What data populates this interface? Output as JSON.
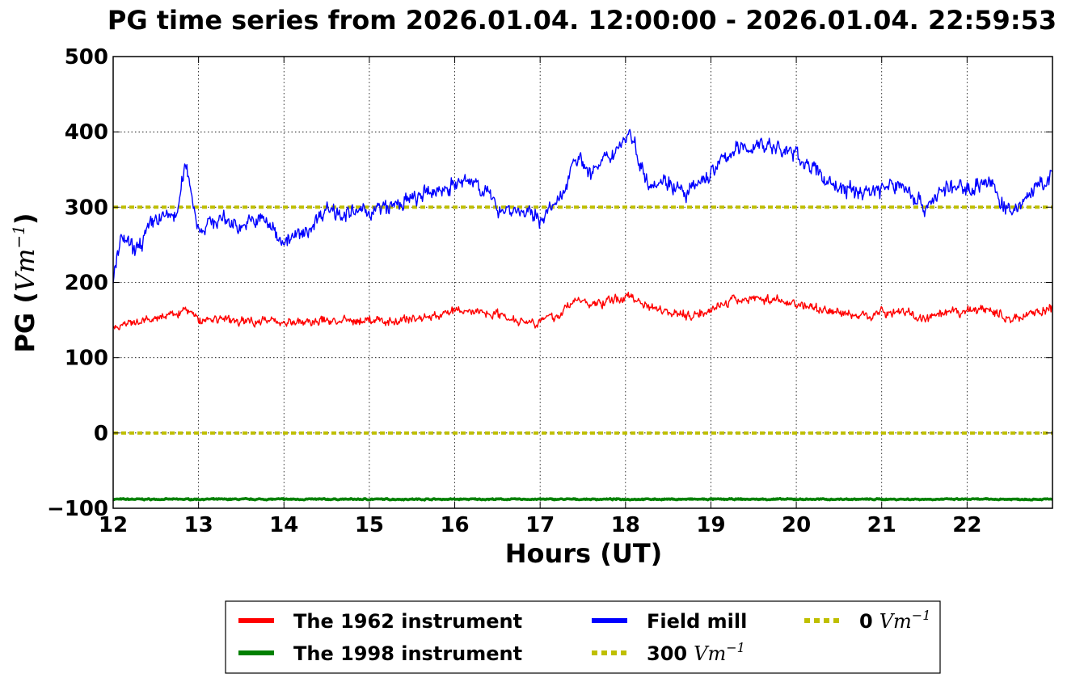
{
  "chart_data": {
    "type": "line",
    "title": "PG time series from 2026.01.04. 12:00:00 - 2026.01.04. 22:59:53",
    "xlabel": "Hours (UT)",
    "ylabel_prefix": "PG (",
    "ylabel_unit": "Vm",
    "ylabel_exp": "−1",
    "ylabel_suffix": ")",
    "xlim": [
      12,
      23
    ],
    "ylim": [
      -100,
      500
    ],
    "xticks": [
      12,
      13,
      14,
      15,
      16,
      17,
      18,
      19,
      20,
      21,
      22
    ],
    "xtick_labels": [
      "12",
      "13",
      "14",
      "15",
      "16",
      "17",
      "18",
      "19",
      "20",
      "21",
      "22"
    ],
    "yticks": [
      -100,
      0,
      100,
      200,
      300,
      400,
      500
    ],
    "ytick_labels": [
      "−100",
      "0",
      "100",
      "200",
      "300",
      "400",
      "500"
    ],
    "grid": true,
    "legend_position": "bottom-center",
    "series": [
      {
        "name": "The 1962 instrument",
        "color": "#ff0000",
        "style": "solid",
        "x": [
          12.0,
          12.25,
          12.5,
          12.75,
          12.85,
          13.0,
          13.25,
          13.5,
          13.75,
          14.0,
          14.25,
          14.5,
          14.75,
          15.0,
          15.25,
          15.5,
          15.75,
          16.0,
          16.25,
          16.5,
          16.75,
          17.0,
          17.25,
          17.4,
          17.6,
          17.8,
          18.05,
          18.25,
          18.5,
          18.75,
          19.0,
          19.25,
          19.5,
          19.6,
          19.75,
          20.0,
          20.25,
          20.5,
          20.75,
          21.0,
          21.25,
          21.5,
          21.75,
          22.0,
          22.25,
          22.5,
          22.75,
          23.0
        ],
        "y": [
          140,
          145,
          152,
          158,
          165,
          150,
          152,
          148,
          150,
          148,
          146,
          150,
          148,
          150,
          148,
          152,
          155,
          162,
          162,
          158,
          150,
          148,
          158,
          178,
          170,
          175,
          182,
          170,
          162,
          155,
          165,
          175,
          180,
          178,
          176,
          172,
          165,
          160,
          155,
          160,
          162,
          150,
          158,
          162,
          165,
          150,
          160,
          165
        ]
      },
      {
        "name": "The 1998 instrument",
        "color": "#008000",
        "style": "solid",
        "x": [
          12.0,
          13.0,
          14.0,
          15.0,
          16.0,
          17.0,
          18.0,
          19.0,
          20.0,
          21.0,
          22.0,
          23.0
        ],
        "y": [
          -88,
          -88,
          -88,
          -88,
          -88,
          -88,
          -88,
          -88,
          -88,
          -88,
          -88,
          -88
        ]
      },
      {
        "name": "Field mill",
        "color": "#0000ff",
        "style": "solid",
        "x": [
          12.0,
          12.1,
          12.25,
          12.5,
          12.75,
          12.85,
          13.0,
          13.25,
          13.5,
          13.75,
          14.0,
          14.25,
          14.5,
          14.75,
          15.0,
          15.25,
          15.5,
          15.75,
          16.0,
          16.25,
          16.5,
          16.75,
          17.0,
          17.25,
          17.4,
          17.6,
          17.8,
          18.05,
          18.25,
          18.5,
          18.7,
          19.0,
          19.25,
          19.5,
          19.6,
          19.75,
          20.0,
          20.25,
          20.5,
          20.75,
          21.0,
          21.25,
          21.5,
          21.75,
          22.0,
          22.25,
          22.5,
          22.75,
          23.0
        ],
        "y": [
          205,
          260,
          240,
          285,
          290,
          360,
          270,
          285,
          275,
          285,
          255,
          265,
          300,
          290,
          295,
          300,
          310,
          320,
          330,
          335,
          300,
          295,
          285,
          310,
          370,
          345,
          365,
          400,
          335,
          335,
          315,
          345,
          375,
          380,
          385,
          378,
          370,
          345,
          325,
          320,
          325,
          330,
          300,
          325,
          325,
          335,
          290,
          320,
          340
        ]
      },
      {
        "name": "300 Vm⁻¹",
        "label_value": "300",
        "color": "#bfbf00",
        "style": "dotted",
        "x": [
          12.0,
          23.0
        ],
        "y": [
          300,
          300
        ]
      },
      {
        "name": "0 Vm⁻¹",
        "label_value": "0",
        "color": "#bfbf00",
        "style": "dotted",
        "x": [
          12.0,
          23.0
        ],
        "y": [
          0,
          0
        ]
      }
    ],
    "legend": {
      "items": [
        {
          "label": "The 1962 instrument",
          "color": "#ff0000",
          "style": "solid"
        },
        {
          "label": "Field mill",
          "color": "#0000ff",
          "style": "solid"
        },
        {
          "label": "0",
          "unit": "Vm",
          "exp": "−1",
          "color": "#bfbf00",
          "style": "dotted"
        },
        {
          "label": "The 1998 instrument",
          "color": "#008000",
          "style": "solid"
        },
        {
          "label": "300",
          "unit": "Vm",
          "exp": "−1",
          "color": "#bfbf00",
          "style": "dotted"
        }
      ]
    }
  }
}
